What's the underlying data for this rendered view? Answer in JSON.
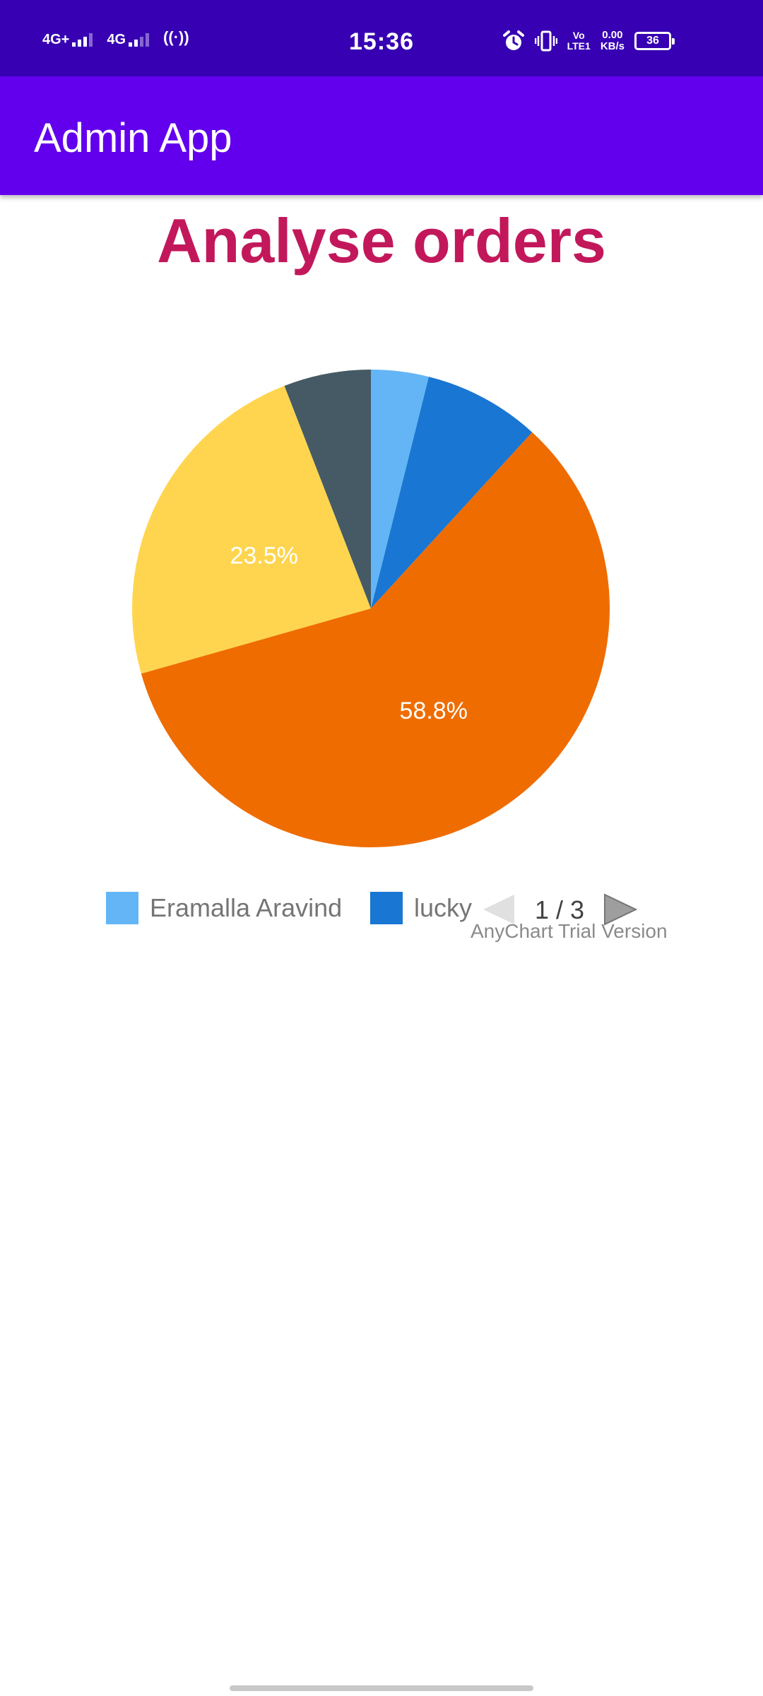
{
  "status_bar": {
    "sim1_type": "4G+",
    "sim2_type": "4G",
    "hotspot_label": "((·))",
    "time": "15:36",
    "volte_top": "Vo",
    "volte_bottom": "LTE1",
    "net_speed_value": "0.00",
    "net_speed_unit": "KB/s",
    "battery_level": "36",
    "icons": [
      "signal-icon",
      "signal-icon",
      "hotspot-icon",
      "alarm-icon",
      "vibrate-icon",
      "volte-icon",
      "battery-icon"
    ]
  },
  "app_bar": {
    "title": "Admin App"
  },
  "page": {
    "heading": "Analyse orders"
  },
  "chart_data": {
    "type": "pie",
    "start_angle_deg": 0,
    "direction": "clockwise",
    "slices": [
      {
        "name": "Eramalla Aravind",
        "value": 3.9,
        "color": "#64b5f6",
        "label": ""
      },
      {
        "name": "lucky",
        "value": 7.9,
        "color": "#1976d2",
        "label": ""
      },
      {
        "name": "",
        "value": 58.8,
        "color": "#ef6c00",
        "label": "58.8%"
      },
      {
        "name": "",
        "value": 23.5,
        "color": "#ffd54f",
        "label": "23.5%"
      },
      {
        "name": "",
        "value": 5.9,
        "color": "#455a64",
        "label": ""
      }
    ],
    "legend": {
      "items": [
        {
          "name": "Eramalla Aravind",
          "color": "#64b5f6"
        },
        {
          "name": "lucky",
          "color": "#1976d2"
        }
      ],
      "position": "bottom",
      "page": "1 / 3"
    },
    "label_color": "#ffffff",
    "credits": "AnyChart Trial Version"
  },
  "colors": {
    "status_bar": "#3700b3",
    "app_bar": "#6200ee",
    "heading": "#c2185b"
  }
}
